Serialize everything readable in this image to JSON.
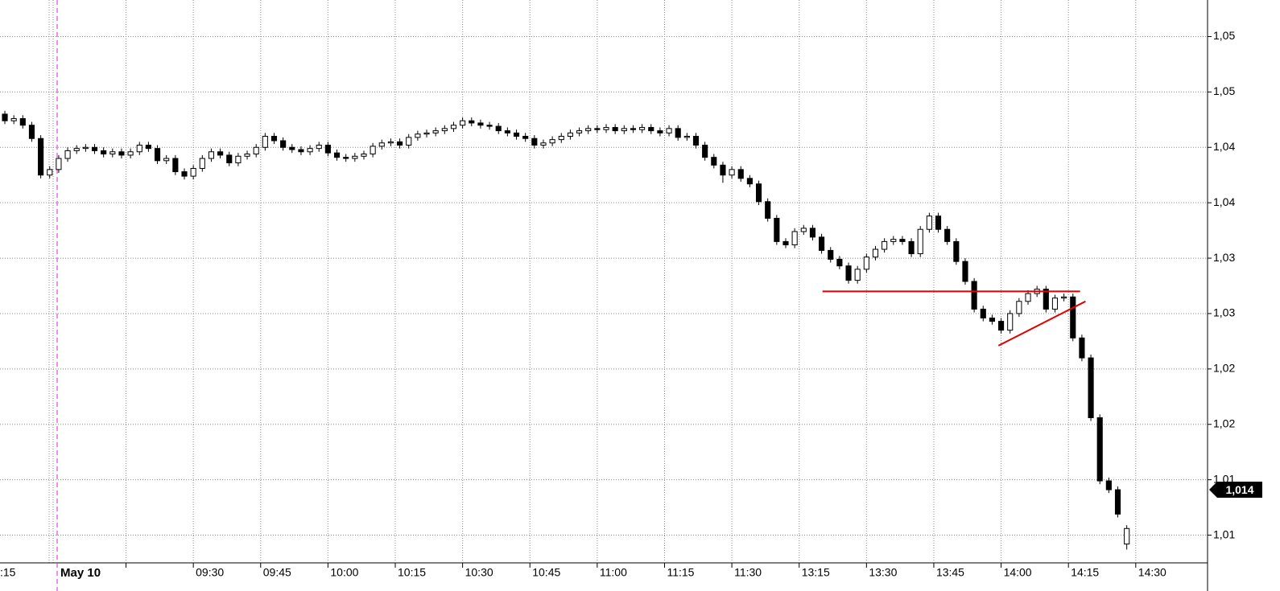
{
  "chart_data": {
    "type": "candlestick",
    "ylim": [
      1.0075,
      1.0583
    ],
    "xlim": [
      -0.54,
      134
    ],
    "yticks": [
      {
        "value": 1.055,
        "label": "1,05"
      },
      {
        "value": 1.05,
        "label": "1,05"
      },
      {
        "value": 1.045,
        "label": "1,04"
      },
      {
        "value": 1.04,
        "label": "1,04"
      },
      {
        "value": 1.035,
        "label": "1,03"
      },
      {
        "value": 1.03,
        "label": "1,03"
      },
      {
        "value": 1.025,
        "label": "1,02"
      },
      {
        "value": 1.02,
        "label": "1,02"
      },
      {
        "value": 1.015,
        "label": "1,01"
      },
      {
        "value": 1.01,
        "label": "1,01"
      }
    ],
    "xticks": [
      {
        "value": -1.5,
        "label": ":15"
      },
      {
        "value": 13.5,
        "label": null
      },
      {
        "value": 21,
        "label": "09:30"
      },
      {
        "value": 28.5,
        "label": "09:45"
      },
      {
        "value": 36,
        "label": "10:00"
      },
      {
        "value": 43.5,
        "label": "10:15"
      },
      {
        "value": 51,
        "label": "10:30"
      },
      {
        "value": 58.5,
        "label": "10:45"
      },
      {
        "value": 66,
        "label": "11:00"
      },
      {
        "value": 73.5,
        "label": "11:15"
      },
      {
        "value": 81,
        "label": "11:30"
      },
      {
        "value": 88.5,
        "label": "13:15"
      },
      {
        "value": 96,
        "label": "13:30"
      },
      {
        "value": 103.5,
        "label": "13:45"
      },
      {
        "value": 111,
        "label": "14:00"
      },
      {
        "value": 118.5,
        "label": "14:15"
      },
      {
        "value": 126,
        "label": "14:30"
      }
    ],
    "session_break": {
      "value": 5.83,
      "label": "May 10",
      "color": "#e020e0"
    },
    "grid": true,
    "up_color": "#ffffff",
    "down_color": "#000000",
    "open": [
      1.048,
      1.0474,
      1.0476,
      1.047,
      1.0458,
      1.0425,
      1.043,
      1.044,
      1.0447,
      1.0449,
      1.045,
      1.0447,
      1.0444,
      1.0446,
      1.0443,
      1.0446,
      1.0452,
      1.0449,
      1.0438,
      1.044,
      1.0428,
      1.0424,
      1.0431,
      1.044,
      1.0446,
      1.0443,
      1.0436,
      1.0442,
      1.0444,
      1.045,
      1.046,
      1.0456,
      1.045,
      1.0448,
      1.0446,
      1.0449,
      1.0452,
      1.0445,
      1.0441,
      1.044,
      1.0442,
      1.0444,
      1.0451,
      1.0454,
      1.0455,
      1.0452,
      1.0459,
      1.0462,
      1.0463,
      1.0465,
      1.0467,
      1.047,
      1.0474,
      1.0472,
      1.047,
      1.0469,
      1.0465,
      1.0463,
      1.046,
      1.0458,
      1.0452,
      1.0454,
      1.0457,
      1.046,
      1.0463,
      1.0465,
      1.0467,
      1.0466,
      1.0468,
      1.0465,
      1.0467,
      1.0466,
      1.0468,
      1.0465,
      1.0463,
      1.0467,
      1.0459,
      1.046,
      1.0452,
      1.0441,
      1.0434,
      1.0425,
      1.043,
      1.0422,
      1.0417,
      1.0401,
      1.0386,
      1.0365,
      1.0362,
      1.0374,
      1.0377,
      1.0369,
      1.0357,
      1.0349,
      1.0343,
      1.033,
      1.034,
      1.0351,
      1.0358,
      1.0365,
      1.0367,
      1.0365,
      1.0354,
      1.0376,
      1.0388,
      1.0376,
      1.0365,
      1.0347,
      1.0329,
      1.0304,
      1.0296,
      1.0293,
      1.0285,
      1.03,
      1.0311,
      1.0318,
      1.0322,
      1.0304,
      1.0314,
      1.0315,
      1.0278,
      1.026,
      1.0206,
      1.0149,
      1.0141,
      1.0092
    ],
    "high": [
      1.0483,
      1.0479,
      1.0479,
      1.0473,
      1.0461,
      1.0433,
      1.0443,
      1.045,
      1.0452,
      1.0453,
      1.0453,
      1.045,
      1.0449,
      1.0449,
      1.0449,
      1.0455,
      1.0455,
      1.0452,
      1.0443,
      1.0443,
      1.0431,
      1.0434,
      1.0443,
      1.0449,
      1.0449,
      1.0446,
      1.0445,
      1.0447,
      1.0453,
      1.0463,
      1.0463,
      1.0459,
      1.0453,
      1.0451,
      1.0452,
      1.0455,
      1.0455,
      1.0448,
      1.0444,
      1.0445,
      1.0447,
      1.0454,
      1.0457,
      1.0458,
      1.0458,
      1.0462,
      1.0465,
      1.0466,
      1.0468,
      1.047,
      1.0473,
      1.0477,
      1.0477,
      1.0475,
      1.0473,
      1.0472,
      1.0468,
      1.0466,
      1.0463,
      1.0461,
      1.0457,
      1.046,
      1.0463,
      1.0466,
      1.0468,
      1.047,
      1.047,
      1.0471,
      1.0471,
      1.047,
      1.047,
      1.0471,
      1.0471,
      1.0468,
      1.047,
      1.047,
      1.0463,
      1.0463,
      1.0455,
      1.0444,
      1.0437,
      1.0433,
      1.0433,
      1.0425,
      1.042,
      1.0404,
      1.0389,
      1.0368,
      1.0377,
      1.038,
      1.038,
      1.0372,
      1.036,
      1.0352,
      1.0346,
      1.0343,
      1.0354,
      1.0361,
      1.0368,
      1.037,
      1.037,
      1.0368,
      1.0379,
      1.0391,
      1.0391,
      1.0379,
      1.0368,
      1.035,
      1.0332,
      1.0307,
      1.0299,
      1.0296,
      1.0303,
      1.0314,
      1.0321,
      1.0325,
      1.0325,
      1.0317,
      1.0318,
      1.0318,
      1.0281,
      1.0263,
      1.0209,
      1.0152,
      1.0144,
      1.0109
    ],
    "low": [
      1.0471,
      1.0471,
      1.0467,
      1.0455,
      1.0422,
      1.0422,
      1.0427,
      1.0437,
      1.0444,
      1.0446,
      1.0444,
      1.0441,
      1.0441,
      1.044,
      1.044,
      1.0443,
      1.0446,
      1.0435,
      1.0435,
      1.0425,
      1.0421,
      1.0421,
      1.0428,
      1.0437,
      1.044,
      1.0433,
      1.0433,
      1.0439,
      1.0441,
      1.0447,
      1.0453,
      1.0447,
      1.0445,
      1.0443,
      1.0443,
      1.0446,
      1.0442,
      1.0438,
      1.0437,
      1.0437,
      1.0439,
      1.0441,
      1.0448,
      1.0451,
      1.0449,
      1.0449,
      1.0456,
      1.0459,
      1.046,
      1.0462,
      1.0464,
      1.0467,
      1.0469,
      1.0467,
      1.0466,
      1.0462,
      1.046,
      1.0457,
      1.0455,
      1.0449,
      1.0449,
      1.0451,
      1.0454,
      1.0457,
      1.046,
      1.0462,
      1.0463,
      1.0463,
      1.0462,
      1.0462,
      1.0463,
      1.0463,
      1.0462,
      1.046,
      1.046,
      1.0456,
      1.0456,
      1.0449,
      1.0438,
      1.0431,
      1.0418,
      1.0422,
      1.0419,
      1.0414,
      1.0398,
      1.0383,
      1.0362,
      1.0359,
      1.0359,
      1.0371,
      1.0366,
      1.0354,
      1.0346,
      1.034,
      1.0327,
      1.0327,
      1.0337,
      1.0348,
      1.0355,
      1.0362,
      1.0362,
      1.0351,
      1.0351,
      1.0373,
      1.0373,
      1.0362,
      1.0344,
      1.0326,
      1.0301,
      1.0293,
      1.029,
      1.0282,
      1.0282,
      1.0297,
      1.0308,
      1.0315,
      1.0301,
      1.0301,
      1.0311,
      1.0275,
      1.0257,
      1.0203,
      1.0146,
      1.0138,
      1.0116,
      1.0087
    ],
    "close": [
      1.0474,
      1.0476,
      1.047,
      1.0458,
      1.0425,
      1.043,
      1.044,
      1.0447,
      1.0449,
      1.045,
      1.0447,
      1.0444,
      1.0446,
      1.0443,
      1.0446,
      1.0452,
      1.0449,
      1.0438,
      1.044,
      1.0428,
      1.0424,
      1.0431,
      1.044,
      1.0446,
      1.0443,
      1.0436,
      1.0442,
      1.0444,
      1.045,
      1.046,
      1.0456,
      1.045,
      1.0448,
      1.0446,
      1.0449,
      1.0452,
      1.0445,
      1.0441,
      1.044,
      1.0442,
      1.0444,
      1.0451,
      1.0454,
      1.0455,
      1.0452,
      1.0459,
      1.0462,
      1.0463,
      1.0465,
      1.0467,
      1.047,
      1.0474,
      1.0472,
      1.047,
      1.0469,
      1.0465,
      1.0463,
      1.046,
      1.0458,
      1.0452,
      1.0454,
      1.0457,
      1.046,
      1.0463,
      1.0465,
      1.0467,
      1.0466,
      1.0468,
      1.0465,
      1.0467,
      1.0466,
      1.0468,
      1.0465,
      1.0463,
      1.0467,
      1.0459,
      1.046,
      1.0452,
      1.0441,
      1.0434,
      1.0425,
      1.043,
      1.0422,
      1.0417,
      1.0401,
      1.0386,
      1.0365,
      1.0362,
      1.0374,
      1.0377,
      1.0369,
      1.0357,
      1.0349,
      1.0343,
      1.033,
      1.034,
      1.0351,
      1.0358,
      1.0365,
      1.0367,
      1.0365,
      1.0354,
      1.0376,
      1.0388,
      1.0376,
      1.0365,
      1.0347,
      1.0329,
      1.0304,
      1.0296,
      1.0293,
      1.0285,
      1.03,
      1.0311,
      1.0318,
      1.0322,
      1.0304,
      1.0314,
      1.0315,
      1.0278,
      1.026,
      1.0206,
      1.0149,
      1.0141,
      1.0119,
      1.0106
    ],
    "trendlines": [
      {
        "color": "#e00000",
        "x": [
          91.1,
          119.8
        ],
        "y": [
          1.032,
          1.032
        ]
      },
      {
        "color": "#e00000",
        "x": [
          110.7,
          120.4
        ],
        "y": [
          1.0271,
          1.0311
        ]
      }
    ],
    "last_price": {
      "value": 1.0141,
      "label": "1,014"
    }
  }
}
